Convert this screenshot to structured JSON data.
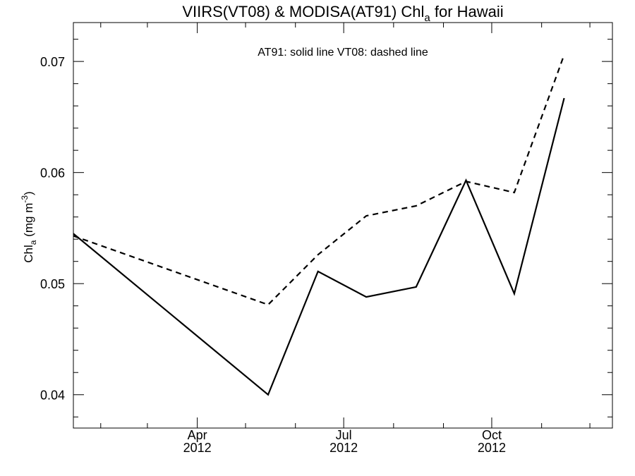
{
  "chart_data": {
    "type": "line",
    "title": {
      "main": "VIIRS(VT08) & MODISA(AT91)  Chl",
      "sub": "a",
      "suffix": " for Hawaii"
    },
    "annotation": "AT91: solid line   VT08: dashed line",
    "ylabel": {
      "pre": "Chl",
      "sub": "a",
      "mid": " (mg m",
      "sup": "-3",
      "post": ")"
    },
    "xlabel": "",
    "xlim": [
      "2012-01-15",
      "2012-12-15"
    ],
    "ylim": [
      0.037,
      0.0735
    ],
    "y_ticks": [
      "0.04",
      "0.05",
      "0.06",
      "0.07"
    ],
    "x_ticks": [
      {
        "month": "Apr",
        "year": "2012",
        "date": "2012-04-01"
      },
      {
        "month": "Jul",
        "year": "2012",
        "date": "2012-07-01"
      },
      {
        "month": "Oct",
        "year": "2012",
        "date": "2012-10-01"
      }
    ],
    "grid": false,
    "series": [
      {
        "name": "AT91",
        "style": "solid",
        "color": "#000000",
        "points": [
          {
            "x": "2012-01-15",
            "y": 0.0545
          },
          {
            "x": "2012-05-15",
            "y": 0.04
          },
          {
            "x": "2012-06-15",
            "y": 0.0511
          },
          {
            "x": "2012-07-15",
            "y": 0.0488
          },
          {
            "x": "2012-08-15",
            "y": 0.0497
          },
          {
            "x": "2012-09-15",
            "y": 0.0593
          },
          {
            "x": "2012-10-15",
            "y": 0.0491
          },
          {
            "x": "2012-11-15",
            "y": 0.0667
          }
        ]
      },
      {
        "name": "VT08",
        "style": "dashed",
        "color": "#000000",
        "points": [
          {
            "x": "2012-01-15",
            "y": 0.0543
          },
          {
            "x": "2012-05-15",
            "y": 0.0481
          },
          {
            "x": "2012-06-15",
            "y": 0.0526
          },
          {
            "x": "2012-07-15",
            "y": 0.0561
          },
          {
            "x": "2012-08-15",
            "y": 0.057
          },
          {
            "x": "2012-09-15",
            "y": 0.0592
          },
          {
            "x": "2012-10-15",
            "y": 0.0582
          },
          {
            "x": "2012-11-15",
            "y": 0.0706
          }
        ]
      }
    ]
  }
}
